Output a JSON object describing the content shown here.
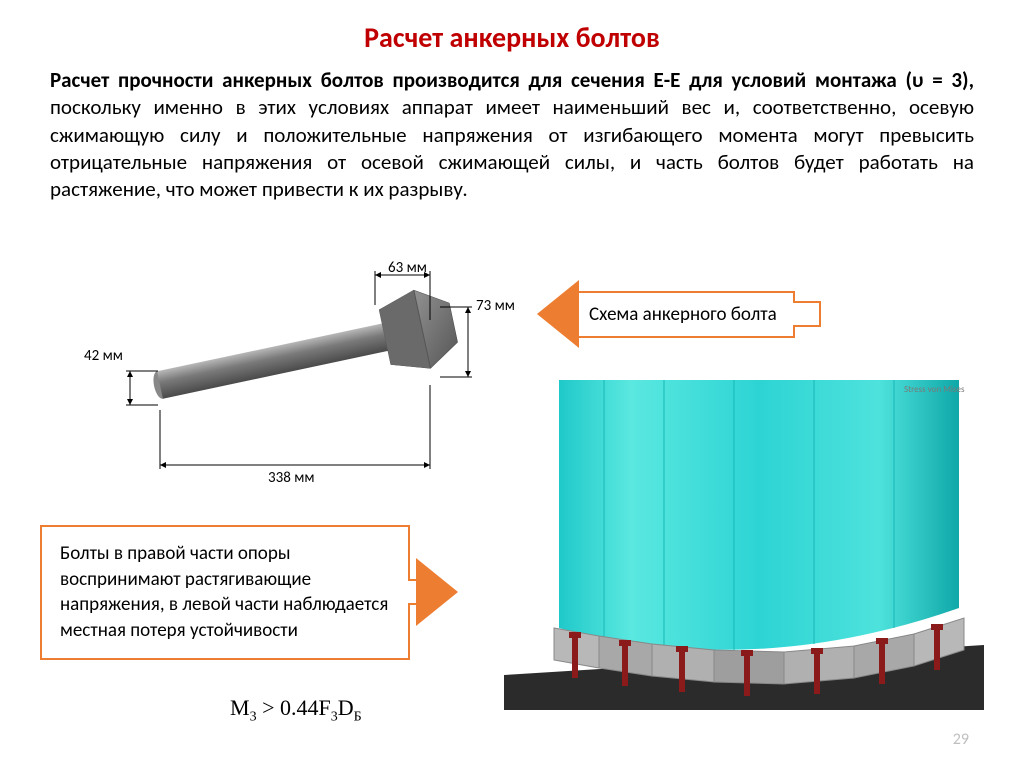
{
  "title": "Расчет анкерных болтов",
  "paragraph_html": "<b>Расчет прочности анкерных болтов производится для сечения Е-Е для условий монтажа (υ = 3),</b> поскольку именно в этих условиях аппарат имеет наименьший вес и, соответственно, осевую сжимающую силу и положительные напряжения от изгибающего момента могут превысить отрицательные напряжения от осевой сжимающей силы, и часть болтов будет работать на растяжение, что может привести к их разрыву.",
  "bolt": {
    "head_width_label": "63 мм",
    "head_height_label": "73 мм",
    "shaft_dia_label": "42 мм",
    "length_label": "338 мм",
    "colors": {
      "bolt_light": "#9a9a9a",
      "bolt_dark": "#5c5c5c",
      "dim_line": "#000000"
    }
  },
  "callout1_text": "Схема анкерного болта",
  "callout2_text": "Болты в правой части опоры воспринимают растягивающие напряжения, в левой части наблюдается местная потеря устойчивости",
  "formula": "M₃ > 0.44F₃D_Б",
  "fem": {
    "vessel_color_light": "#40e0d0",
    "vessel_color_dark": "#0eb8b8",
    "vessel_color_edge": "#008b8b",
    "flange_color": "#a8a8a8",
    "bolt_color": "#8b1a1a",
    "ground_color": "#2b2b2b"
  },
  "page_number": "29",
  "colors": {
    "title": "#c00000",
    "callout_border": "#ed7d31",
    "text": "#000000",
    "page_num": "#bfbfbf"
  }
}
